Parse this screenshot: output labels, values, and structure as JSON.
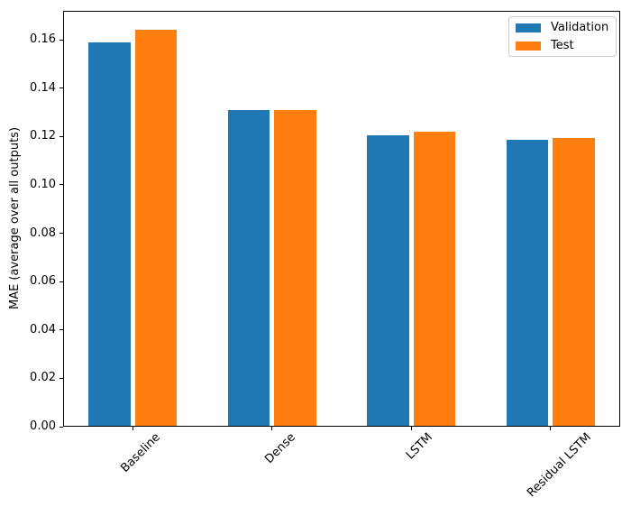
{
  "figure": {
    "background": "#ffffff",
    "axis_color": "#000000"
  },
  "chart_data": {
    "type": "bar",
    "title": "",
    "xlabel": "",
    "ylabel": "MAE (average over all outputs)",
    "categories": [
      "Baseline",
      "Dense",
      "LSTM",
      "Residual LSTM"
    ],
    "series": [
      {
        "name": "Validation",
        "color": "#1f77b4",
        "values": [
          0.159,
          0.131,
          0.1205,
          0.1185
        ]
      },
      {
        "name": "Test",
        "color": "#ff7f0e",
        "values": [
          0.164,
          0.131,
          0.122,
          0.1195
        ]
      }
    ],
    "ylim": [
      0,
      0.172
    ],
    "yticks": [
      "0.00",
      "0.02",
      "0.04",
      "0.06",
      "0.08",
      "0.10",
      "0.12",
      "0.14",
      "0.16"
    ],
    "xtick_rotation_deg": 45,
    "grid": false,
    "legend": {
      "position": "upper-right",
      "entries": [
        "Validation",
        "Test"
      ]
    },
    "bar_width_fraction": 0.3
  }
}
